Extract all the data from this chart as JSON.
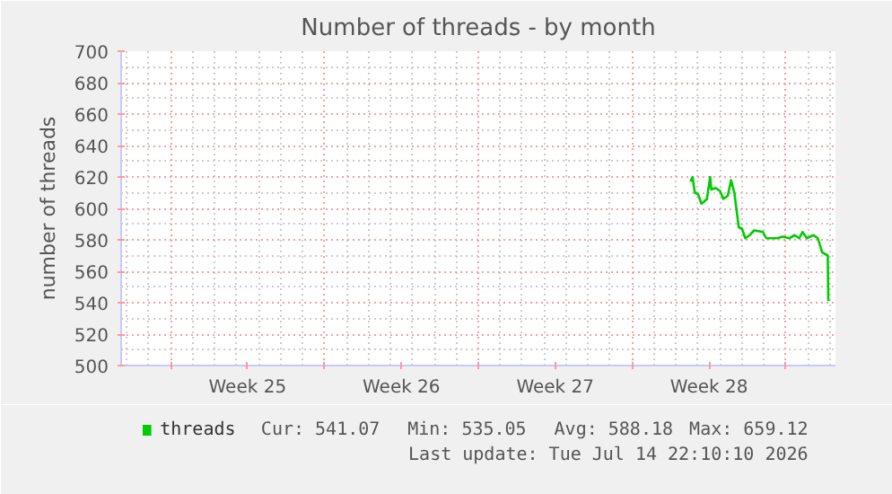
{
  "chart_data": {
    "type": "line",
    "title": "Number of threads - by month",
    "ylabel": "number of threads",
    "x": [
      "2026-07-08T15:36",
      "2026-07-08T18:00",
      "2026-07-08T20:24",
      "2026-07-09T00:00",
      "2026-07-09T03:36",
      "2026-07-09T06:00",
      "2026-07-09T09:36",
      "2026-07-09T13:12",
      "2026-07-09T14:24",
      "2026-07-09T19:12",
      "2026-07-10T00:00",
      "2026-07-10T03:36",
      "2026-07-10T08:24",
      "2026-07-10T12:00",
      "2026-07-10T15:36",
      "2026-07-10T20:24",
      "2026-07-11T00:00",
      "2026-07-11T03:36",
      "2026-07-11T08:24",
      "2026-07-11T13:12",
      "2026-07-11T22:48",
      "2026-07-12T02:24",
      "2026-07-12T14:24",
      "2026-07-12T20:24",
      "2026-07-13T03:36",
      "2026-07-13T09:36",
      "2026-07-13T14:24",
      "2026-07-13T18:00",
      "2026-07-13T22:48",
      "2026-07-14T06:00",
      "2026-07-14T10:48",
      "2026-07-14T14:24",
      "2026-07-14T15:36",
      "2026-07-14T21:36",
      "2026-07-14T22:10"
    ],
    "series": [
      {
        "name": "threads",
        "color": "#00cc00",
        "values": [
          617,
          620,
          610,
          609,
          603,
          604,
          606,
          620,
          612,
          613,
          611,
          606,
          608,
          618,
          610,
          588,
          587,
          581,
          583,
          586,
          585,
          581,
          581,
          582,
          581,
          583,
          581,
          585,
          581,
          583,
          581,
          574,
          572,
          570,
          541
        ]
      }
    ],
    "xlim": [
      "2026-06-12T18:00",
      "2026-07-15T06:00"
    ],
    "xticks": [
      {
        "value": "2026-06-15",
        "label": null
      },
      {
        "value": "2026-06-18T12:00",
        "label": "Week 25"
      },
      {
        "value": "2026-06-22",
        "label": null
      },
      {
        "value": "2026-06-25T12:00",
        "label": "Week 26"
      },
      {
        "value": "2026-06-29",
        "label": null
      },
      {
        "value": "2026-07-02T12:00",
        "label": "Week 27"
      },
      {
        "value": "2026-07-06",
        "label": null
      },
      {
        "value": "2026-07-09T12:00",
        "label": "Week 28"
      },
      {
        "value": "2026-07-13",
        "label": null
      }
    ],
    "ylim": [
      500,
      700
    ],
    "yticks": [
      500,
      520,
      540,
      560,
      580,
      600,
      620,
      640,
      660,
      680,
      700
    ],
    "grid": true,
    "legend": "bottom left",
    "marker": "none",
    "line_style": "solid",
    "annotations": [
      "Cur: 541.07",
      "Min: 535.05",
      "Avg: 588.18",
      "Max: 659.12",
      "Last update: Tue Jul 14 22:10:10 2026"
    ]
  }
}
